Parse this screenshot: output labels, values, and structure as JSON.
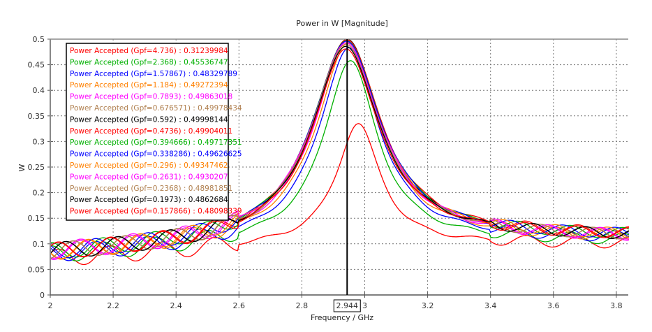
{
  "chart_data": {
    "type": "line",
    "title": "Power in W [Magnitude]",
    "xlabel": "Frequency / GHz",
    "ylabel": "W",
    "xlim": [
      2,
      3.84
    ],
    "ylim": [
      0,
      0.5
    ],
    "x_ticks": [
      "2",
      "2.2",
      "2.4",
      "2.6",
      "2.8",
      "3",
      "3.2",
      "3.4",
      "3.6",
      "3.8"
    ],
    "y_ticks": [
      "0",
      "0.05",
      "0.1",
      "0.15",
      "0.2",
      "0.25",
      "0.3",
      "0.35",
      "0.4",
      "0.45",
      "0.5"
    ],
    "grid": true,
    "legend_position": "top-left",
    "cursor": {
      "x": 2.944,
      "label": "2.944"
    },
    "series": [
      {
        "name": "Power Accepted (Gpf=4.736)",
        "value_at_cursor": "0.31239984",
        "color": "#ff0000",
        "peak_f": 2.98,
        "peak": 0.335,
        "width": 0.105,
        "base": 0.07,
        "tail": 0.1
      },
      {
        "name": "Power Accepted (Gpf=2.368)",
        "value_at_cursor": "0.45536747",
        "color": "#00b000",
        "peak_f": 2.955,
        "peak": 0.458,
        "width": 0.13,
        "base": 0.075,
        "tail": 0.105
      },
      {
        "name": "Power Accepted (Gpf=1.57867)",
        "value_at_cursor": "0.48329789",
        "color": "#0000ff",
        "peak_f": 2.95,
        "peak": 0.483,
        "width": 0.145,
        "base": 0.075,
        "tail": 0.108
      },
      {
        "name": "Power Accepted (Gpf=1.184)",
        "value_at_cursor": "0.49272394",
        "color": "#ff8000",
        "peak_f": 2.948,
        "peak": 0.493,
        "width": 0.152,
        "base": 0.078,
        "tail": 0.11
      },
      {
        "name": "Power Accepted (Gpf=0.7893)",
        "value_at_cursor": "0.49863018",
        "color": "#ff00ff",
        "peak_f": 2.946,
        "peak": 0.498,
        "width": 0.158,
        "base": 0.078,
        "tail": 0.11
      },
      {
        "name": "Power Accepted (Gpf=0.676571)",
        "value_at_cursor": "0.49978434",
        "color": "#b08050",
        "peak_f": 2.945,
        "peak": 0.4995,
        "width": 0.16,
        "base": 0.078,
        "tail": 0.112
      },
      {
        "name": "Power Accepted (Gpf=0.592)",
        "value_at_cursor": "0.49998144",
        "color": "#000000",
        "peak_f": 2.944,
        "peak": 0.4999,
        "width": 0.162,
        "base": 0.078,
        "tail": 0.112
      },
      {
        "name": "Power Accepted (Gpf=0.4736)",
        "value_at_cursor": "0.49904011",
        "color": "#ff0000",
        "peak_f": 2.943,
        "peak": 0.499,
        "width": 0.165,
        "base": 0.078,
        "tail": 0.115
      },
      {
        "name": "Power Accepted (Gpf=0.394666)",
        "value_at_cursor": "0.49717351",
        "color": "#00b000",
        "peak_f": 2.942,
        "peak": 0.497,
        "width": 0.166,
        "base": 0.078,
        "tail": 0.113
      },
      {
        "name": "Power Accepted (Gpf=0.338286)",
        "value_at_cursor": "0.49626625",
        "color": "#0000ff",
        "peak_f": 2.942,
        "peak": 0.496,
        "width": 0.166,
        "base": 0.078,
        "tail": 0.113
      },
      {
        "name": "Power Accepted (Gpf=0.296)",
        "value_at_cursor": "0.49347462",
        "color": "#ff8000",
        "peak_f": 2.941,
        "peak": 0.493,
        "width": 0.165,
        "base": 0.078,
        "tail": 0.113
      },
      {
        "name": "Power Accepted (Gpf=0.2631)",
        "value_at_cursor": "0.4930207",
        "color": "#ff00ff",
        "peak_f": 2.941,
        "peak": 0.493,
        "width": 0.164,
        "base": 0.08,
        "tail": 0.112
      },
      {
        "name": "Power Accepted (Gpf=0.2368)",
        "value_at_cursor": "0.48981851",
        "color": "#b08050",
        "peak_f": 2.94,
        "peak": 0.49,
        "width": 0.163,
        "base": 0.078,
        "tail": 0.112
      },
      {
        "name": "Power Accepted (Gpf=0.1973)",
        "value_at_cursor": "0.4862684",
        "color": "#000000",
        "peak_f": 2.94,
        "peak": 0.486,
        "width": 0.162,
        "base": 0.078,
        "tail": 0.113
      },
      {
        "name": "Power Accepted (Gpf=0.157866)",
        "value_at_cursor": "0.48098339",
        "color": "#ff0000",
        "peak_f": 2.94,
        "peak": 0.481,
        "width": 0.16,
        "base": 0.078,
        "tail": 0.114
      }
    ]
  }
}
